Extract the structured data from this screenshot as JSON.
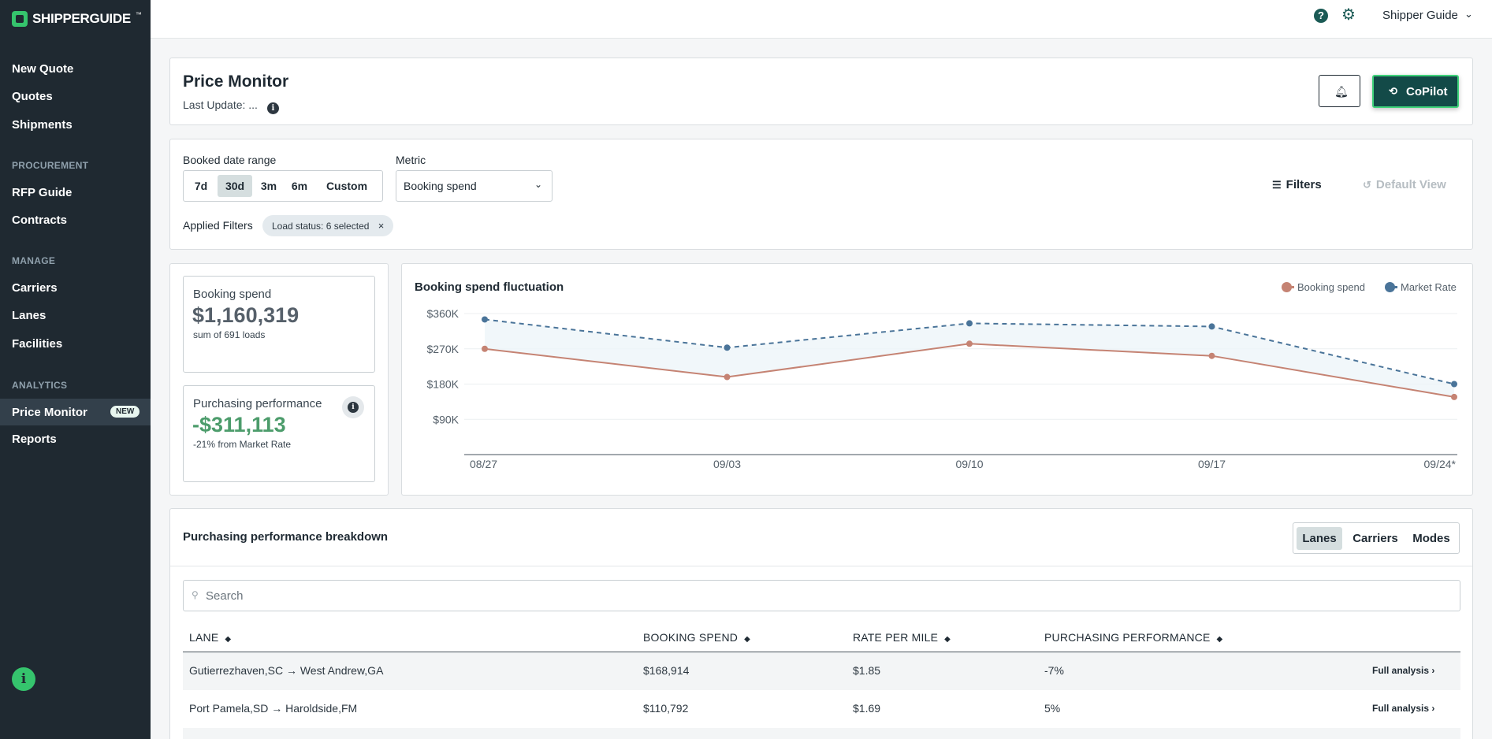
{
  "sidebar": {
    "logo": "SHIPPERGUIDE",
    "logo_tm": "™",
    "items": [
      {
        "label": "New Quote"
      },
      {
        "label": "Quotes"
      },
      {
        "label": "Shipments"
      },
      {
        "label": "RFP Guide"
      },
      {
        "label": "Contracts"
      },
      {
        "label": "Carriers"
      },
      {
        "label": "Lanes"
      },
      {
        "label": "Facilities"
      },
      {
        "label": "Price Monitor",
        "badge": "NEW",
        "active": true
      },
      {
        "label": "Reports"
      }
    ],
    "sections": [
      "PROCUREMENT",
      "MANAGE",
      "ANALYTICS"
    ]
  },
  "topbar": {
    "account": "Shipper Guide"
  },
  "header": {
    "title": "Price Monitor",
    "last_update": "Last Update: ...",
    "copilot_label": "CoPilot"
  },
  "filters": {
    "date_range_label": "Booked date range",
    "ranges": [
      "7d",
      "30d",
      "3m",
      "6m",
      "Custom"
    ],
    "selected_range": "30d",
    "metric_label": "Metric",
    "metric_value": "Booking spend",
    "filters_button": "Filters",
    "default_view_button": "Default View",
    "applied_label": "Applied Filters",
    "applied_chip": "Load status: 6 selected",
    "chip_close": "×"
  },
  "kpis": {
    "booking_spend": {
      "label": "Booking spend",
      "value": "$1,160,319",
      "sub": "sum of 691 loads"
    },
    "purchasing": {
      "label": "Purchasing performance",
      "value": "-$311,113",
      "sub": "-21% from Market Rate",
      "value_color": "#4c9c6b"
    }
  },
  "chart_data": {
    "type": "line",
    "title": "Booking spend fluctuation",
    "x": [
      "08/27",
      "09/03",
      "09/10",
      "09/17",
      "09/24*"
    ],
    "y_ticks": [
      "$90K",
      "$180K",
      "$270K",
      "$360K"
    ],
    "ylim": [
      0,
      360000
    ],
    "series": [
      {
        "name": "Booking spend",
        "values": [
          270000,
          198000,
          283000,
          252000,
          147000
        ],
        "color": "#c58373",
        "dash": false
      },
      {
        "name": "Market Rate",
        "values": [
          345000,
          273000,
          335000,
          327000,
          180000
        ],
        "color": "#4a7499",
        "dash": true
      }
    ],
    "legend_position": "top-right",
    "grid": true
  },
  "breakdown": {
    "title": "Purchasing performance breakdown",
    "tabs": [
      "Lanes",
      "Carriers",
      "Modes"
    ],
    "active_tab": "Lanes",
    "search_placeholder": "Search",
    "columns": [
      "LANE",
      "BOOKING SPEND",
      "RATE PER MILE",
      "PURCHASING PERFORMANCE"
    ],
    "rows": [
      {
        "lane": "Gutierrezhaven,SC → West Andrew,GA",
        "spend": "$168,914",
        "rpm": "$1.85",
        "perf": "-7%",
        "link": "Full analysis ›"
      },
      {
        "lane": "Port Pamela,SD → Haroldside,FM",
        "spend": "$110,792",
        "rpm": "$1.69",
        "perf": "5%",
        "link": "Full analysis ›"
      }
    ]
  }
}
